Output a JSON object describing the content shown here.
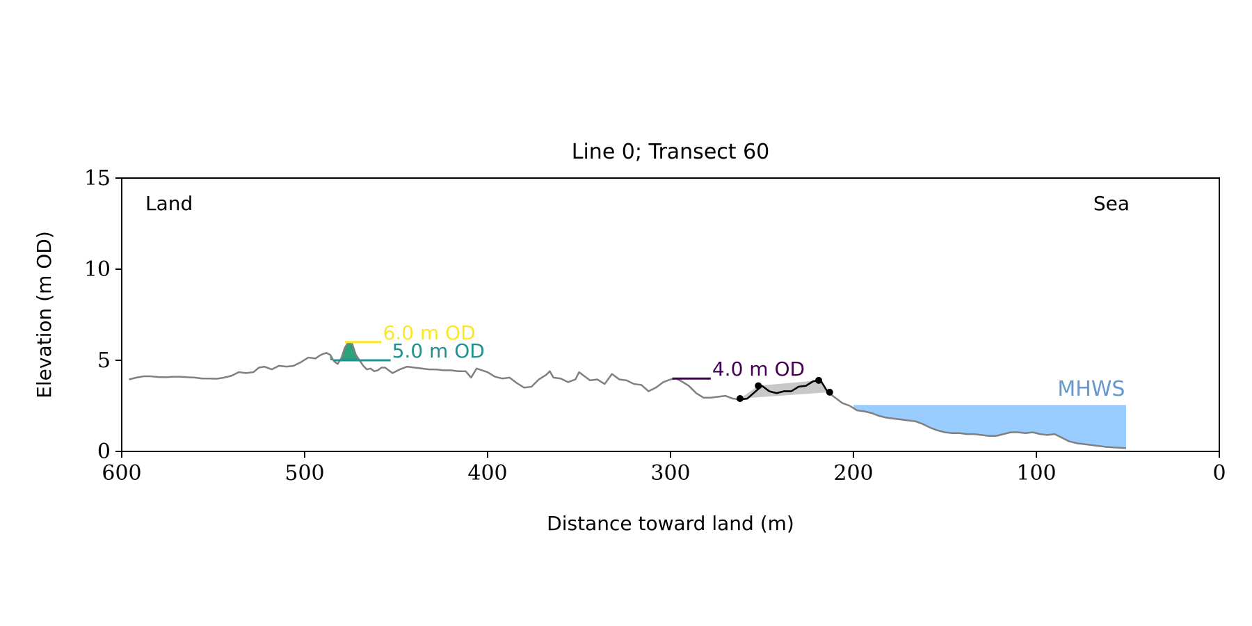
{
  "chart_data": {
    "type": "line",
    "title": "Line 0; Transect 60",
    "xlabel": "Distance toward land (m)",
    "ylabel": "Elevation (m OD)",
    "xlim": [
      600,
      0
    ],
    "ylim": [
      0,
      15
    ],
    "x_ticks": [
      600,
      500,
      400,
      300,
      200,
      100,
      0
    ],
    "y_ticks": [
      0,
      5,
      10,
      15
    ],
    "grid": false,
    "corner_labels": {
      "left": "Land",
      "right": "Sea"
    },
    "colors": {
      "profile": "#808080",
      "dune_section": "#000000",
      "dune_fill": "#c8c8c8",
      "sea_fill": "#99ccff",
      "mhws_label": "#6699cc",
      "od6": "#fde725",
      "od5": "#21918c",
      "od4": "#440154",
      "peak_fill": "#2aa37a"
    },
    "profile": {
      "x": [
        596,
        592,
        588,
        584,
        580,
        576,
        572,
        568,
        564,
        560,
        556,
        552,
        548,
        544,
        540,
        536,
        532,
        528,
        525,
        522,
        518,
        514,
        510,
        506,
        502,
        498,
        494,
        492,
        490,
        488,
        486,
        484,
        482,
        480,
        478,
        476,
        474,
        472,
        470,
        468,
        466,
        464,
        462,
        460,
        458,
        456,
        452,
        448,
        444,
        440,
        436,
        432,
        428,
        424,
        420,
        416,
        412,
        409,
        406,
        403,
        400,
        396,
        392,
        388,
        384,
        380,
        376,
        372,
        368,
        366,
        364,
        360,
        356,
        352,
        350,
        348,
        344,
        340,
        336,
        332,
        328,
        324,
        320,
        316,
        312,
        308,
        304,
        300,
        297,
        294,
        290,
        286,
        282,
        278,
        274,
        270,
        266,
        262,
        258,
        254,
        250,
        246,
        242,
        238,
        234,
        230,
        226,
        222,
        218,
        214,
        210,
        206,
        202,
        198,
        194,
        190,
        186,
        182,
        178,
        174,
        170,
        166,
        162,
        158,
        154,
        150,
        146,
        142,
        138,
        134,
        130,
        126,
        122,
        118,
        114,
        110,
        106,
        102,
        98,
        94,
        90,
        86,
        82,
        78,
        74,
        70,
        66,
        62,
        58,
        54,
        51
      ],
      "y": [
        3.95,
        4.05,
        4.12,
        4.12,
        4.08,
        4.07,
        4.1,
        4.1,
        4.07,
        4.05,
        4.0,
        4.0,
        3.99,
        4.05,
        4.15,
        4.35,
        4.3,
        4.35,
        4.6,
        4.65,
        4.5,
        4.7,
        4.65,
        4.7,
        4.9,
        5.15,
        5.1,
        5.25,
        5.35,
        5.4,
        5.3,
        4.95,
        4.8,
        5.1,
        5.7,
        6.0,
        5.9,
        5.3,
        5.0,
        4.7,
        4.5,
        4.55,
        4.4,
        4.45,
        4.6,
        4.6,
        4.3,
        4.5,
        4.65,
        4.6,
        4.55,
        4.5,
        4.5,
        4.45,
        4.45,
        4.4,
        4.4,
        4.05,
        4.55,
        4.45,
        4.35,
        4.1,
        4.0,
        4.05,
        3.75,
        3.5,
        3.55,
        3.95,
        4.2,
        4.4,
        4.05,
        4.0,
        3.8,
        3.95,
        4.35,
        4.2,
        3.9,
        3.95,
        3.7,
        4.25,
        3.95,
        3.9,
        3.7,
        3.65,
        3.3,
        3.5,
        3.8,
        3.95,
        4.0,
        3.85,
        3.6,
        3.2,
        2.95,
        2.95,
        3.0,
        3.05,
        2.9,
        2.85,
        2.9,
        3.25,
        3.6,
        3.3,
        3.2,
        3.3,
        3.3,
        3.55,
        3.6,
        3.85,
        3.9,
        3.25,
        2.95,
        2.65,
        2.5,
        2.25,
        2.2,
        2.1,
        1.95,
        1.85,
        1.8,
        1.75,
        1.7,
        1.65,
        1.5,
        1.3,
        1.15,
        1.05,
        1.0,
        1.0,
        0.95,
        0.95,
        0.9,
        0.85,
        0.85,
        0.95,
        1.05,
        1.05,
        1.0,
        1.05,
        0.95,
        0.9,
        0.95,
        0.75,
        0.55,
        0.45,
        0.4,
        0.35,
        0.3,
        0.25,
        0.22,
        0.2,
        0.18
      ]
    },
    "dune_section": {
      "x": [
        262,
        252,
        219,
        213
      ],
      "y": [
        2.9,
        3.6,
        3.9,
        3.25
      ]
    },
    "mhws": {
      "label": "MHWS",
      "level": 2.55,
      "x_from": 200,
      "x_to": 51
    },
    "od_levels": [
      {
        "label": "6.0 m OD",
        "y": 6.0,
        "x_start": 478,
        "x_end": 458,
        "color": "#fde725"
      },
      {
        "label": "5.0 m OD",
        "y": 5.0,
        "x_start": 484,
        "x_end": 453,
        "color": "#21918c"
      },
      {
        "label": "4.0 m OD",
        "y": 4.0,
        "x_start": 299,
        "x_end": 278,
        "color": "#440154"
      }
    ]
  }
}
